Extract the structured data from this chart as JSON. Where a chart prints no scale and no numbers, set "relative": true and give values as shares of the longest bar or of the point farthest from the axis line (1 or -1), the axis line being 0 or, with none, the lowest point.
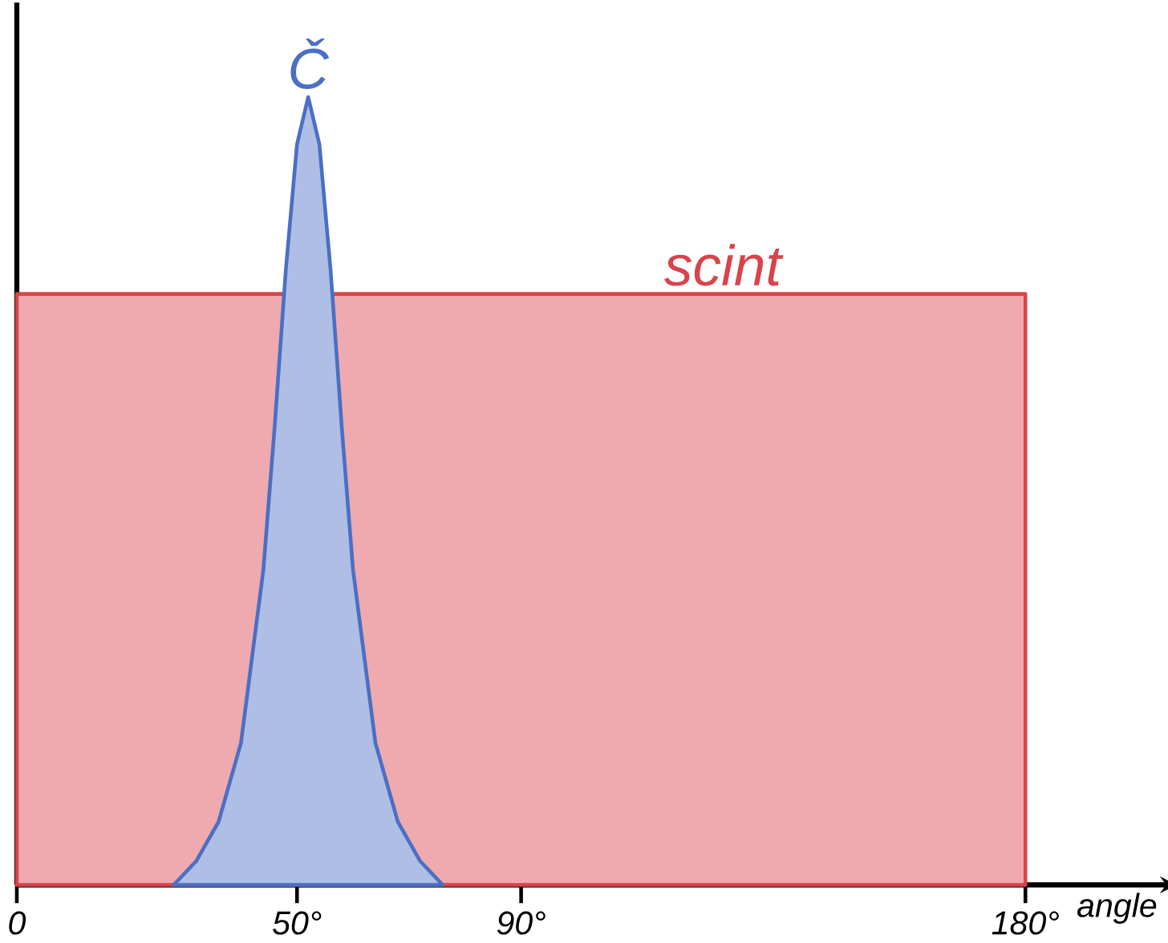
{
  "chart_data": {
    "type": "area",
    "relative": true,
    "xlabel": "angle",
    "xlim": [
      0,
      205
    ],
    "xticks": [
      0,
      {
        "value": 50,
        "label": "50°"
      },
      {
        "value": 90,
        "label": "90°"
      },
      {
        "value": 180,
        "label": "180°"
      }
    ],
    "grid": false,
    "series": [
      {
        "name": "scint",
        "color": "#d9434b",
        "x": [
          0,
          180
        ],
        "values": [
          0.75,
          0.75
        ]
      },
      {
        "name": "Č",
        "color": "#4a6fc4",
        "x": [
          28,
          32,
          36,
          40,
          44,
          46,
          48,
          50,
          52,
          54,
          56,
          58,
          60,
          64,
          68,
          72,
          76
        ],
        "values": [
          0,
          0.03,
          0.08,
          0.18,
          0.4,
          0.58,
          0.78,
          0.94,
          1.0,
          0.94,
          0.78,
          0.58,
          0.4,
          0.18,
          0.08,
          0.03,
          0
        ]
      }
    ]
  }
}
